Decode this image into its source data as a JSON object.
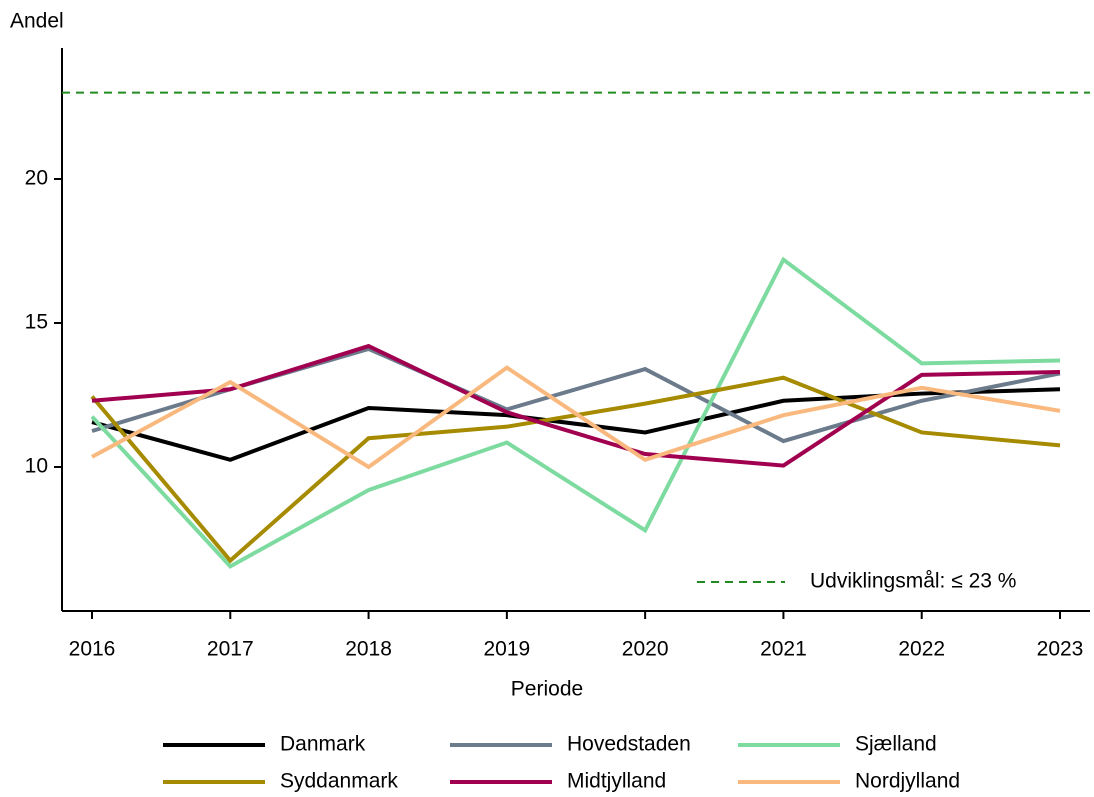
{
  "chart_data": {
    "type": "line",
    "ylabel": "Andel",
    "xlabel": "Periode",
    "categories": [
      "2016",
      "2017",
      "2018",
      "2019",
      "2020",
      "2021",
      "2022",
      "2023"
    ],
    "series": [
      {
        "name": "Danmark",
        "color": "#000000",
        "values": [
          11.56,
          10.25,
          12.05,
          11.8,
          11.2,
          12.3,
          12.55,
          12.7
        ]
      },
      {
        "name": "Hovedstaden",
        "color": "#6b7b8c",
        "values": [
          11.25,
          12.7,
          14.1,
          12.0,
          13.4,
          10.9,
          12.3,
          13.25
        ]
      },
      {
        "name": "Sjælland",
        "color": "#7ddba0",
        "values": [
          11.75,
          6.55,
          9.2,
          10.85,
          7.8,
          17.2,
          13.6,
          13.7
        ]
      },
      {
        "name": "Syddanmark",
        "color": "#a68a00",
        "values": [
          12.45,
          6.75,
          11.0,
          11.4,
          12.2,
          13.1,
          11.2,
          10.75
        ]
      },
      {
        "name": "Midtjylland",
        "color": "#a0004f",
        "values": [
          12.3,
          12.7,
          14.2,
          11.9,
          10.45,
          10.05,
          13.2,
          13.3
        ]
      },
      {
        "name": "Nordjylland",
        "color": "#f9b97e",
        "values": [
          10.35,
          12.95,
          10.0,
          13.45,
          10.25,
          11.8,
          12.75,
          11.95
        ]
      }
    ],
    "ylim": [
      5,
      24.5
    ],
    "yticks": [
      10,
      15,
      20
    ],
    "reference_line": {
      "value": 23,
      "label": "Udviklingsmål: ≤ 23 %",
      "color": "#228b22"
    }
  }
}
